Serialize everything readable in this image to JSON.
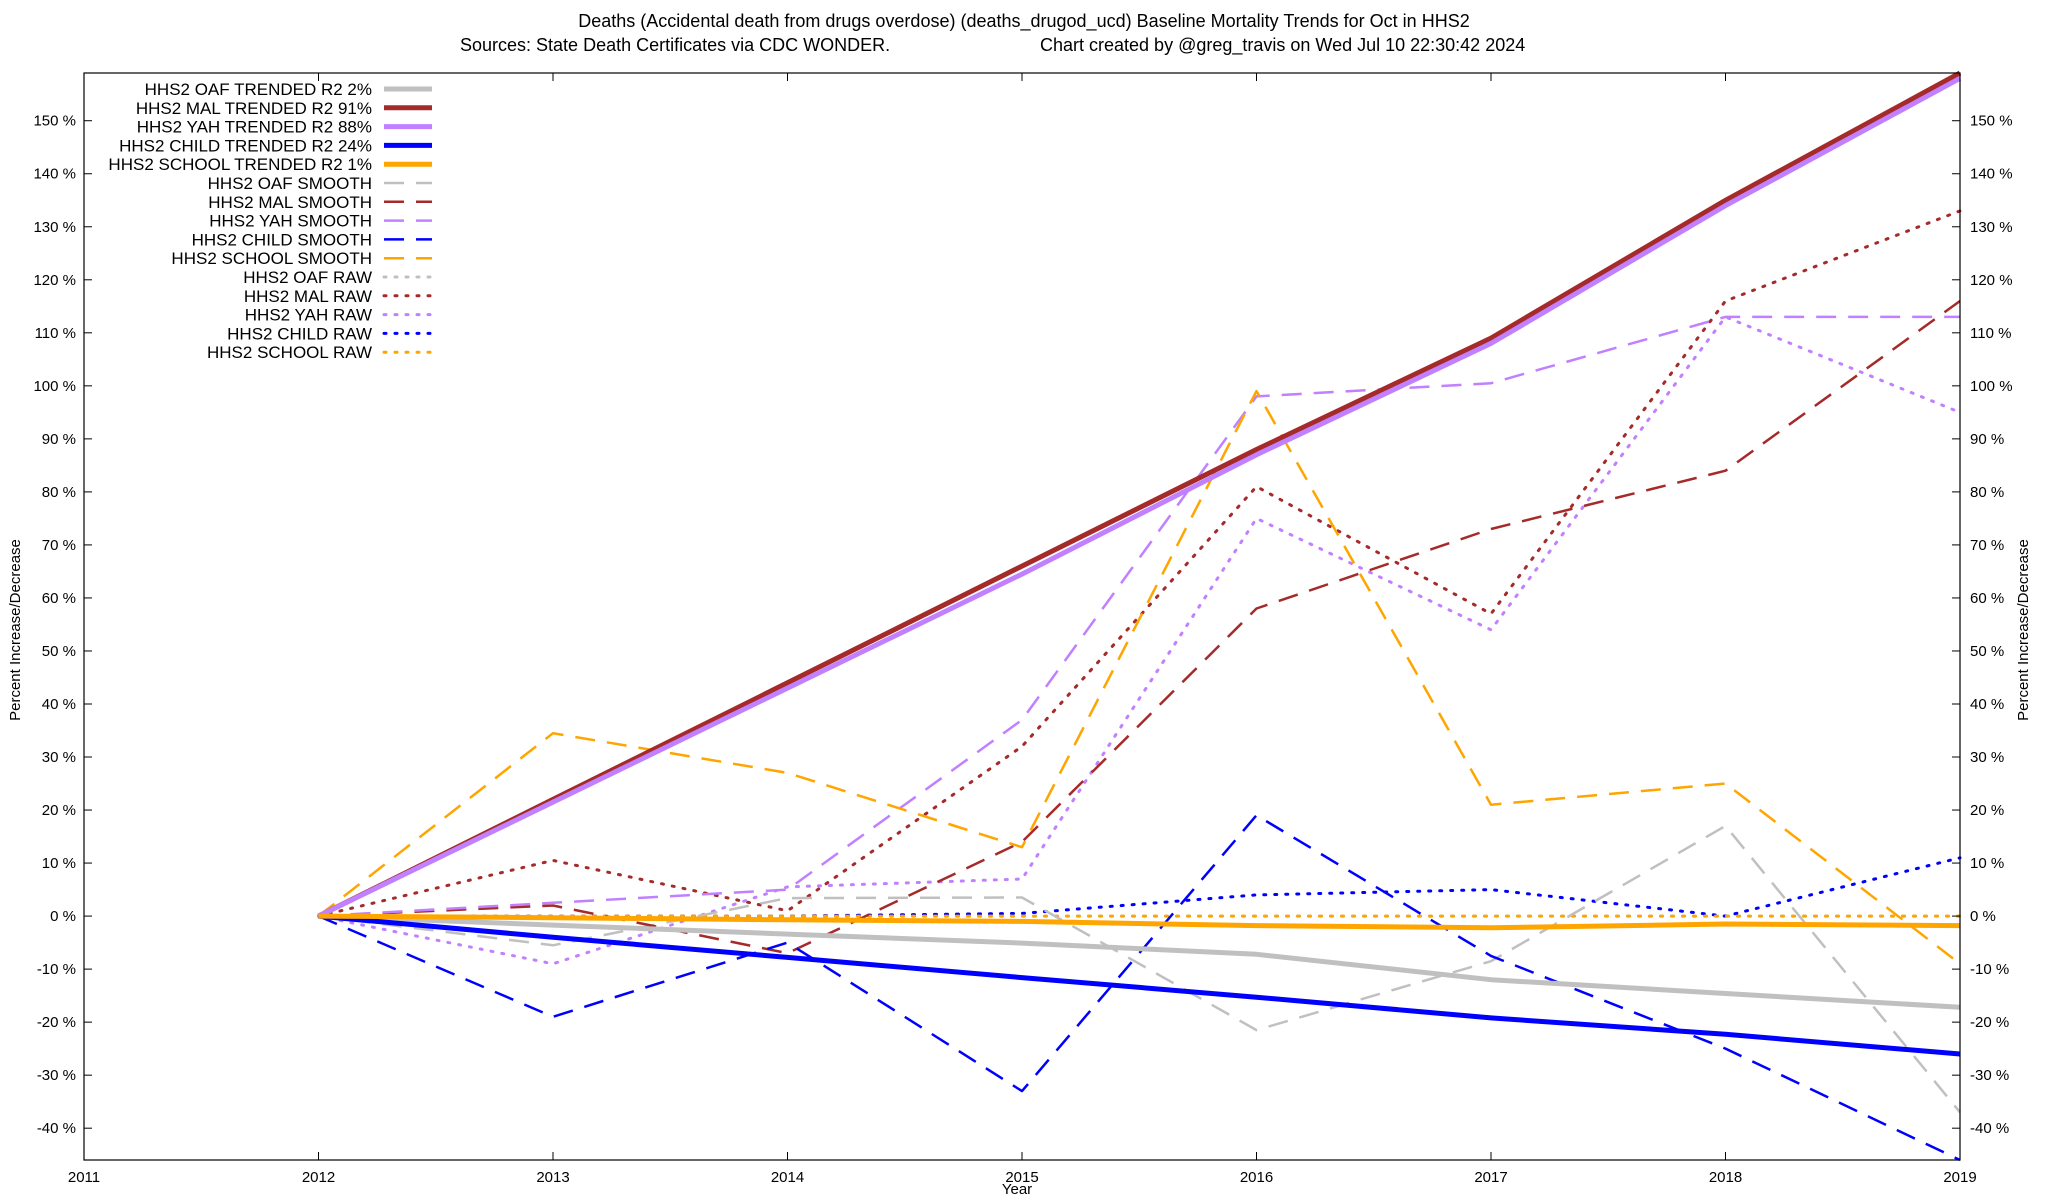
{
  "chart_data": {
    "type": "line",
    "title_line1": "Deaths (Accidental death from drugs overdose) (deaths_drugod_ucd)  Baseline Mortality Trends for Oct in HHS2",
    "title_line2_left": "Sources: State Death Certificates via CDC WONDER.",
    "title_line2_right": "Chart created by @greg_travis on Wed Jul 10 22:30:42 2024",
    "xlabel": "Year",
    "ylabel_left": "Percent Increase/Decrease",
    "ylabel_right": "Percent Increase/Decrease",
    "xlim": [
      2011,
      2019
    ],
    "ylim": [
      -46,
      159
    ],
    "x_ticks": [
      "2011",
      "2012",
      "2013",
      "2014",
      "2015",
      "2016",
      "2017",
      "2018",
      "2019"
    ],
    "y_ticks": [
      {
        "v": -40,
        "label": "-40 %"
      },
      {
        "v": -30,
        "label": "-30 %"
      },
      {
        "v": -20,
        "label": "-20 %"
      },
      {
        "v": -10,
        "label": "-10 %"
      },
      {
        "v": 0,
        "label": "0 %"
      },
      {
        "v": 10,
        "label": "10 %"
      },
      {
        "v": 20,
        "label": "20 %"
      },
      {
        "v": 30,
        "label": "30 %"
      },
      {
        "v": 40,
        "label": "40 %"
      },
      {
        "v": 50,
        "label": "50 %"
      },
      {
        "v": 60,
        "label": "60 %"
      },
      {
        "v": 70,
        "label": "70 %"
      },
      {
        "v": 80,
        "label": "80 %"
      },
      {
        "v": 90,
        "label": "90 %"
      },
      {
        "v": 100,
        "label": "100 %"
      },
      {
        "v": 110,
        "label": "110 %"
      },
      {
        "v": 120,
        "label": "120 %"
      },
      {
        "v": 130,
        "label": "130 %"
      },
      {
        "v": 140,
        "label": "140 %"
      },
      {
        "v": 150,
        "label": "150 %"
      }
    ],
    "legend_position": "top-left",
    "series": [
      {
        "name": "HHS2 OAF TRENDED R2   2%",
        "color": "#c0c0c0",
        "style": "solid",
        "width": 5,
        "x": [
          2012,
          2013,
          2014,
          2015,
          2016,
          2017,
          2018,
          2019
        ],
        "y": [
          0,
          -1.7,
          -3.4,
          -5.1,
          -7.2,
          -12,
          -14.6,
          -17.2
        ]
      },
      {
        "name": "HHS2 MAL TRENDED R2  91%",
        "color": "#a52a2a",
        "style": "solid",
        "width": 5,
        "x": [
          2012,
          2013,
          2014,
          2015,
          2016,
          2017,
          2018,
          2019
        ],
        "y": [
          0,
          22,
          44,
          66,
          88,
          109,
          135,
          159
        ]
      },
      {
        "name": "HHS2 YAH TRENDED R2  88%",
        "color": "#c080ff",
        "style": "solid",
        "width": 5,
        "x": [
          2012,
          2013,
          2014,
          2015,
          2016,
          2017,
          2018,
          2019
        ],
        "y": [
          0,
          21.5,
          43,
          64.5,
          87,
          108,
          134,
          158
        ]
      },
      {
        "name": "HHS2 CHILD TRENDED R2  24%",
        "color": "#0000ff",
        "style": "solid",
        "width": 5,
        "x": [
          2012,
          2013,
          2014,
          2015,
          2016,
          2017,
          2018,
          2019
        ],
        "y": [
          0,
          -4,
          -7.8,
          -11.6,
          -15.3,
          -19.2,
          -22.3,
          -26
        ]
      },
      {
        "name": "HHS2 SCHOOL TRENDED R2   1%",
        "color": "#ffa500",
        "style": "solid",
        "width": 5,
        "x": [
          2012,
          2013,
          2014,
          2015,
          2016,
          2017,
          2018,
          2019
        ],
        "y": [
          0,
          -0.3,
          -0.7,
          -1,
          -1.8,
          -2.2,
          -1.5,
          -1.8
        ]
      },
      {
        "name": "HHS2 OAF SMOOTH",
        "color": "#c0c0c0",
        "style": "dashed",
        "width": 2.5,
        "x": [
          2012,
          2013,
          2014,
          2015,
          2016,
          2017,
          2018,
          2019
        ],
        "y": [
          0,
          -5.5,
          3.4,
          3.5,
          -21.5,
          -8.5,
          17,
          -37
        ]
      },
      {
        "name": "HHS2 MAL SMOOTH",
        "color": "#a52a2a",
        "style": "dashed",
        "width": 2.5,
        "x": [
          2012,
          2013,
          2014,
          2015,
          2016,
          2017,
          2018,
          2019
        ],
        "y": [
          0,
          2,
          -7,
          14,
          58,
          73,
          84,
          116
        ]
      },
      {
        "name": "HHS2 YAH SMOOTH",
        "color": "#c080ff",
        "style": "dashed",
        "width": 2.5,
        "x": [
          2012,
          2013,
          2014,
          2015,
          2016,
          2017,
          2018,
          2019
        ],
        "y": [
          0,
          2.5,
          5,
          37,
          98,
          100.5,
          113,
          113
        ]
      },
      {
        "name": "HHS2 CHILD SMOOTH",
        "color": "#0000ff",
        "style": "dashed",
        "width": 2.5,
        "x": [
          2012,
          2013,
          2014,
          2015,
          2016,
          2017,
          2018,
          2019
        ],
        "y": [
          0,
          -19,
          -5,
          -33,
          19,
          -7.5,
          -25,
          -46
        ]
      },
      {
        "name": "HHS2 SCHOOL SMOOTH",
        "color": "#ffa500",
        "style": "dashed",
        "width": 2.5,
        "x": [
          2012,
          2013,
          2014,
          2015,
          2016,
          2017,
          2018,
          2019
        ],
        "y": [
          0,
          34.5,
          27,
          13,
          99,
          21,
          25,
          -9
        ]
      },
      {
        "name": "HHS2 OAF RAW",
        "color": "#c0c0c0",
        "style": "dotted",
        "width": 3,
        "x": [
          2012,
          2013,
          2014,
          2015,
          2016,
          2017,
          2018,
          2019
        ],
        "y": [
          0,
          0,
          0,
          0,
          0,
          0,
          0,
          0
        ]
      },
      {
        "name": "HHS2 MAL RAW",
        "color": "#a52a2a",
        "style": "dotted",
        "width": 3,
        "x": [
          2012,
          2013,
          2014,
          2015,
          2016,
          2017,
          2018,
          2019
        ],
        "y": [
          0,
          10.5,
          1,
          32,
          81,
          57,
          116,
          133
        ]
      },
      {
        "name": "HHS2 YAH RAW",
        "color": "#c080ff",
        "style": "dotted",
        "width": 3,
        "x": [
          2012,
          2013,
          2014,
          2015,
          2016,
          2017,
          2018,
          2019
        ],
        "y": [
          0,
          -9,
          5.5,
          7,
          75,
          54,
          113,
          95
        ]
      },
      {
        "name": "HHS2 CHILD RAW",
        "color": "#0000ff",
        "style": "dotted",
        "width": 3,
        "x": [
          2012,
          2013,
          2014,
          2015,
          2016,
          2017,
          2018,
          2019
        ],
        "y": [
          0,
          0,
          0,
          0.5,
          4,
          5,
          0,
          11
        ]
      },
      {
        "name": "HHS2 SCHOOL RAW",
        "color": "#ffa500",
        "style": "dotted",
        "width": 3,
        "x": [
          2012,
          2013,
          2014,
          2015,
          2016,
          2017,
          2018,
          2019
        ],
        "y": [
          0,
          0,
          0,
          0,
          0,
          0,
          0,
          0
        ]
      }
    ]
  }
}
